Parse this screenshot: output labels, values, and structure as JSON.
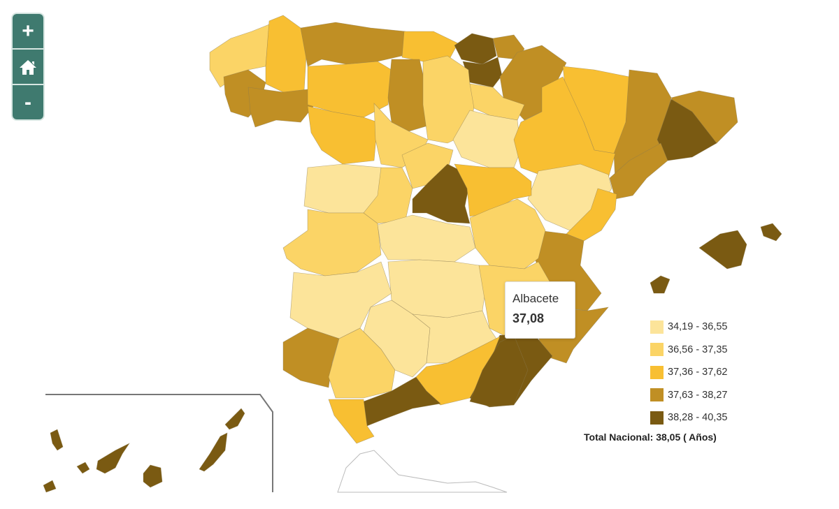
{
  "controls": {
    "zoom_in": "+",
    "home_icon": "home-icon",
    "zoom_out": "-"
  },
  "tooltip": {
    "name": "Albacete",
    "value": "37,08"
  },
  "legend": [
    {
      "label": "34,19 - 36,55",
      "color": "#fce49a"
    },
    {
      "label": "36,56 - 37,35",
      "color": "#fbd466"
    },
    {
      "label": "37,36 - 37,62",
      "color": "#f8bf32"
    },
    {
      "label": "37,63 - 38,27",
      "color": "#c08f24"
    },
    {
      "label": "38,28 - 40,35",
      "color": "#7a5a12"
    }
  ],
  "total": "Total Nacional: 38,05 ( Años)",
  "regions": {
    "a-coruna": 1,
    "lugo": 2,
    "asturias": 3,
    "cantabria": 2,
    "bizkaia": 4,
    "gipuzkoa": 3,
    "alava": 4,
    "navarra": 3,
    "pontevedra": 3,
    "ourense": 3,
    "leon": 2,
    "palencia": 3,
    "burgos": 1,
    "la-rioja": 1,
    "zamora": 2,
    "valladolid": 1,
    "soria": 0,
    "huesca": 2,
    "lleida": 3,
    "girona": 3,
    "barcelona": 4,
    "tarragona": 3,
    "zaragoza": 2,
    "teruel": 0,
    "castellon": 2,
    "valencia": 3,
    "alicante": 3,
    "murcia": 4,
    "salamanca": 0,
    "avila": 1,
    "segovia": 1,
    "madrid": 4,
    "guadalajara": 2,
    "cuenca": 1,
    "caceres": 1,
    "toledo": 0,
    "ciudad-real": 0,
    "albacete": 1,
    "badajoz": 0,
    "huelva": 3,
    "sevilla": 1,
    "cordoba": 0,
    "jaen": 0,
    "granada": 2,
    "almeria": 4,
    "malaga": 4,
    "cadiz": 2,
    "mallorca": 4,
    "menorca": 4,
    "ibiza": 4,
    "tenerife": 4,
    "gran-canaria": 4,
    "la-palma": 4,
    "la-gomera": 4,
    "el-hierro": 4,
    "fuerteventura": 4,
    "lanzarote": 4
  }
}
